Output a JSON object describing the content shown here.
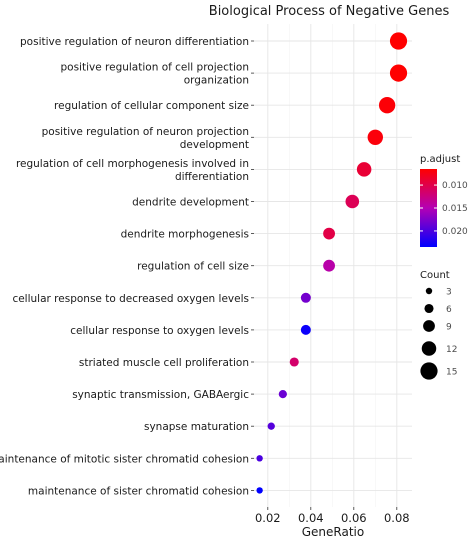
{
  "chart_data": {
    "type": "scatter",
    "title": "Biological Process of Negative Genes",
    "xlabel": "GeneRatio",
    "ylabel": "",
    "xlim": [
      0.015,
      0.083
    ],
    "x_ticks": [
      0.02,
      0.04,
      0.06,
      0.08
    ],
    "x_tick_labels": [
      "0.02",
      "0.04",
      "0.06",
      "0.08"
    ],
    "grid": true,
    "categories": [
      "positive regulation of neuron differentiation",
      "positive regulation of cell projection\norganization",
      "regulation of cellular component size",
      "positive regulation of neuron projection\ndevelopment",
      "regulation of cell morphogenesis involved in\ndifferentiation",
      "dendrite development",
      "dendrite morphogenesis",
      "regulation of cell size",
      "cellular response to decreased oxygen levels",
      "cellular response to oxygen levels",
      "striated muscle cell proliferation",
      "synaptic transmission, GABAergic",
      "synapse maturation",
      "maintenance of mitotic sister chromatid cohesion",
      "maintenance of sister chromatid cohesion"
    ],
    "points": [
      {
        "term": "positive regulation of neuron differentiation",
        "gene_ratio": 0.0808,
        "count": 15,
        "p_adjust": 0.0065
      },
      {
        "term": "positive regulation of cell projection organization",
        "gene_ratio": 0.0808,
        "count": 15,
        "p_adjust": 0.0065
      },
      {
        "term": "regulation of cellular component size",
        "gene_ratio": 0.0755,
        "count": 14,
        "p_adjust": 0.0068
      },
      {
        "term": "positive regulation of neuron projection development",
        "gene_ratio": 0.07,
        "count": 13,
        "p_adjust": 0.007
      },
      {
        "term": "regulation of cell morphogenesis involved in differentiation",
        "gene_ratio": 0.0648,
        "count": 12,
        "p_adjust": 0.009
      },
      {
        "term": "dendrite development",
        "gene_ratio": 0.0593,
        "count": 11,
        "p_adjust": 0.0105
      },
      {
        "term": "dendrite morphogenesis",
        "gene_ratio": 0.0485,
        "count": 9,
        "p_adjust": 0.0098
      },
      {
        "term": "regulation of cell size",
        "gene_ratio": 0.0485,
        "count": 9,
        "p_adjust": 0.0145
      },
      {
        "term": "cellular response to decreased oxygen levels",
        "gene_ratio": 0.0377,
        "count": 7,
        "p_adjust": 0.018
      },
      {
        "term": "cellular response to oxygen levels",
        "gene_ratio": 0.0377,
        "count": 7,
        "p_adjust": 0.023
      },
      {
        "term": "striated muscle cell proliferation",
        "gene_ratio": 0.0323,
        "count": 6,
        "p_adjust": 0.0115
      },
      {
        "term": "synaptic transmission, GABAergic",
        "gene_ratio": 0.027,
        "count": 5,
        "p_adjust": 0.0185
      },
      {
        "term": "synapse maturation",
        "gene_ratio": 0.0216,
        "count": 4,
        "p_adjust": 0.0195
      },
      {
        "term": "maintenance of mitotic sister chromatid cohesion",
        "gene_ratio": 0.0162,
        "count": 3,
        "p_adjust": 0.02
      },
      {
        "term": "maintenance of sister chromatid cohesion",
        "gene_ratio": 0.0162,
        "count": 3,
        "p_adjust": 0.0235
      }
    ],
    "color_legend": {
      "title": "p.adjust",
      "range": [
        0.0065,
        0.0235
      ],
      "ticks": [
        0.01,
        0.015,
        0.02
      ],
      "tick_labels": [
        "0.010",
        "0.015",
        "0.020"
      ],
      "low_color": "#ff0000",
      "high_color": "#0000ff"
    },
    "size_legend": {
      "title": "Count",
      "values": [
        3,
        6,
        9,
        12,
        15
      ],
      "labels": [
        "3",
        "6",
        "9",
        "12",
        "15"
      ]
    },
    "colors": {
      "panel_bg": "#ffffff",
      "grid_major": "#e6e6e6",
      "grid_minor": "#f2f2f2",
      "axis_text": "#4d4d4d",
      "text": "#1a1a1a"
    }
  }
}
